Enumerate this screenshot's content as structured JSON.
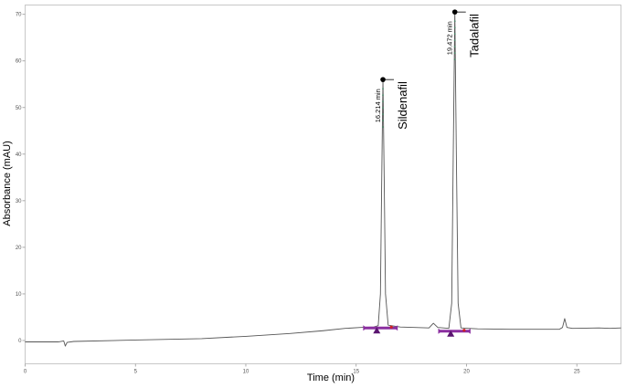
{
  "chart_data": {
    "type": "line",
    "xlabel": "Time (min)",
    "ylabel": "Absorbance (mAU)",
    "xlim": [
      0,
      27
    ],
    "ylim": [
      -5,
      72
    ],
    "x_ticks": [
      0,
      5,
      10,
      15,
      20,
      25
    ],
    "y_ticks": [
      0,
      10,
      20,
      30,
      40,
      50,
      60,
      70
    ],
    "grid": false,
    "series": [
      {
        "color": "#555555",
        "points": [
          [
            0,
            -0.3
          ],
          [
            1.5,
            -0.3
          ],
          [
            1.75,
            -0.1
          ],
          [
            1.82,
            -1.2
          ],
          [
            1.9,
            -0.4
          ],
          [
            2.2,
            -0.2
          ],
          [
            5,
            0.1
          ],
          [
            8,
            0.4
          ],
          [
            10,
            0.9
          ],
          [
            12,
            1.5
          ],
          [
            13.5,
            2.1
          ],
          [
            14.5,
            2.6
          ],
          [
            15.2,
            2.8
          ],
          [
            15.8,
            2.9
          ],
          [
            16.0,
            3.2
          ],
          [
            16.1,
            10
          ],
          [
            16.16,
            35
          ],
          [
            16.214,
            56
          ],
          [
            16.27,
            35
          ],
          [
            16.33,
            10
          ],
          [
            16.45,
            3.3
          ],
          [
            17.0,
            2.9
          ],
          [
            18.3,
            2.7
          ],
          [
            18.5,
            3.7
          ],
          [
            18.7,
            2.8
          ],
          [
            19.2,
            2.6
          ],
          [
            19.33,
            8
          ],
          [
            19.4,
            40
          ],
          [
            19.472,
            70.5
          ],
          [
            19.54,
            40
          ],
          [
            19.62,
            8
          ],
          [
            19.75,
            2.7
          ],
          [
            20.5,
            2.5
          ],
          [
            22,
            2.4
          ],
          [
            24.2,
            2.4
          ],
          [
            24.35,
            2.8
          ],
          [
            24.45,
            4.7
          ],
          [
            24.55,
            2.8
          ],
          [
            24.8,
            2.6
          ],
          [
            26,
            2.7
          ],
          [
            26.5,
            2.6
          ],
          [
            27,
            2.7
          ]
        ]
      }
    ],
    "peaks": [
      {
        "time": 16.214,
        "apex": 56,
        "time_label": "16.214 min",
        "compound": "Sildenafil",
        "baseline_start": 15.4,
        "baseline_end": 16.8,
        "baseline_level": 2.7
      },
      {
        "time": 19.472,
        "apex": 70.5,
        "time_label": "19.472 min",
        "compound": "Tadalafil",
        "baseline_start": 18.8,
        "baseline_end": 20.1,
        "baseline_level": 2.0
      }
    ],
    "colors": {
      "trace": "#555555",
      "baseline_marker": "#8b2fa0",
      "baseline_marker_edge": "#5a1570",
      "peak_marker_red": "#d02020",
      "apex_marker": "#000000",
      "peak_dots": "#4a8a6a"
    }
  }
}
